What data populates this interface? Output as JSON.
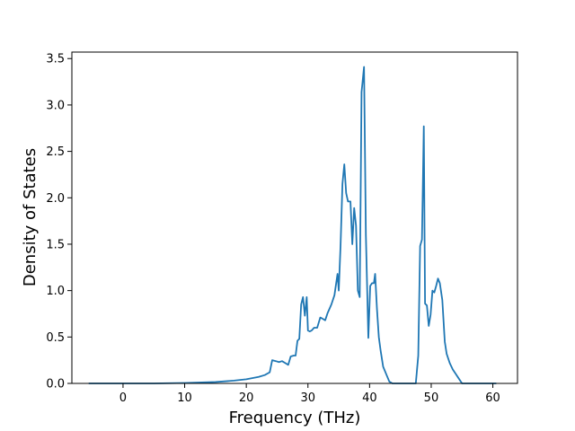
{
  "chart_data": {
    "type": "line",
    "title": "",
    "xlabel": "Frequency (THz)",
    "ylabel": "Density of States",
    "xlim": [
      -8.3,
      64.0
    ],
    "ylim": [
      0.0,
      3.57
    ],
    "xticks": [
      0,
      10,
      20,
      30,
      40,
      50,
      60
    ],
    "yticks": [
      0.0,
      0.5,
      1.0,
      1.5,
      2.0,
      2.5,
      3.0,
      3.5
    ],
    "grid": false,
    "legend": "none",
    "series": [
      {
        "color": "#1f77b4",
        "x": [
          -5.5,
          0,
          5,
          10,
          15,
          18,
          20,
          22,
          23,
          23.8,
          24.2,
          24.8,
          25.3,
          25.8,
          26.3,
          26.8,
          27.2,
          27.7,
          28.0,
          28.3,
          28.6,
          28.9,
          29.2,
          29.5,
          29.8,
          30.0,
          30.3,
          30.6,
          31.0,
          31.5,
          32.0,
          32.3,
          32.8,
          33.2,
          33.8,
          34.3,
          34.8,
          35.0,
          35.3,
          35.6,
          35.9,
          36.2,
          36.5,
          36.9,
          37.2,
          37.5,
          37.8,
          38.1,
          38.4,
          38.7,
          39.1,
          39.4,
          39.8,
          40.1,
          40.4,
          40.7,
          40.9,
          41.2,
          41.5,
          41.8,
          42.2,
          42.7,
          43.2,
          43.7,
          44.2,
          45.0,
          46.0,
          47.0,
          47.5,
          47.9,
          48.2,
          48.5,
          48.8,
          49.0,
          49.3,
          49.6,
          49.9,
          50.2,
          50.5,
          50.8,
          51.1,
          51.4,
          51.8,
          52.2,
          52.5,
          53.0,
          53.5,
          54.0,
          55.0,
          56.0,
          58.0,
          60.5
        ],
        "y": [
          0.0,
          0.0,
          0.0,
          0.005,
          0.015,
          0.03,
          0.045,
          0.07,
          0.09,
          0.12,
          0.25,
          0.24,
          0.23,
          0.24,
          0.22,
          0.2,
          0.29,
          0.3,
          0.3,
          0.46,
          0.48,
          0.85,
          0.93,
          0.73,
          0.93,
          0.57,
          0.56,
          0.57,
          0.6,
          0.6,
          0.71,
          0.7,
          0.68,
          0.76,
          0.85,
          0.95,
          1.18,
          1.0,
          1.5,
          2.15,
          2.36,
          2.05,
          1.96,
          1.96,
          1.5,
          1.89,
          1.7,
          1.0,
          0.93,
          3.14,
          3.41,
          1.6,
          0.49,
          1.05,
          1.08,
          1.08,
          1.18,
          0.8,
          0.5,
          0.35,
          0.18,
          0.1,
          0.02,
          0.0,
          0.0,
          0.0,
          0.0,
          0.0,
          0.0,
          0.3,
          1.48,
          1.55,
          2.77,
          0.86,
          0.84,
          0.62,
          0.74,
          1.0,
          0.98,
          1.05,
          1.13,
          1.08,
          0.9,
          0.45,
          0.32,
          0.22,
          0.15,
          0.1,
          0.0,
          0.0,
          0.0,
          0.0
        ]
      }
    ]
  }
}
